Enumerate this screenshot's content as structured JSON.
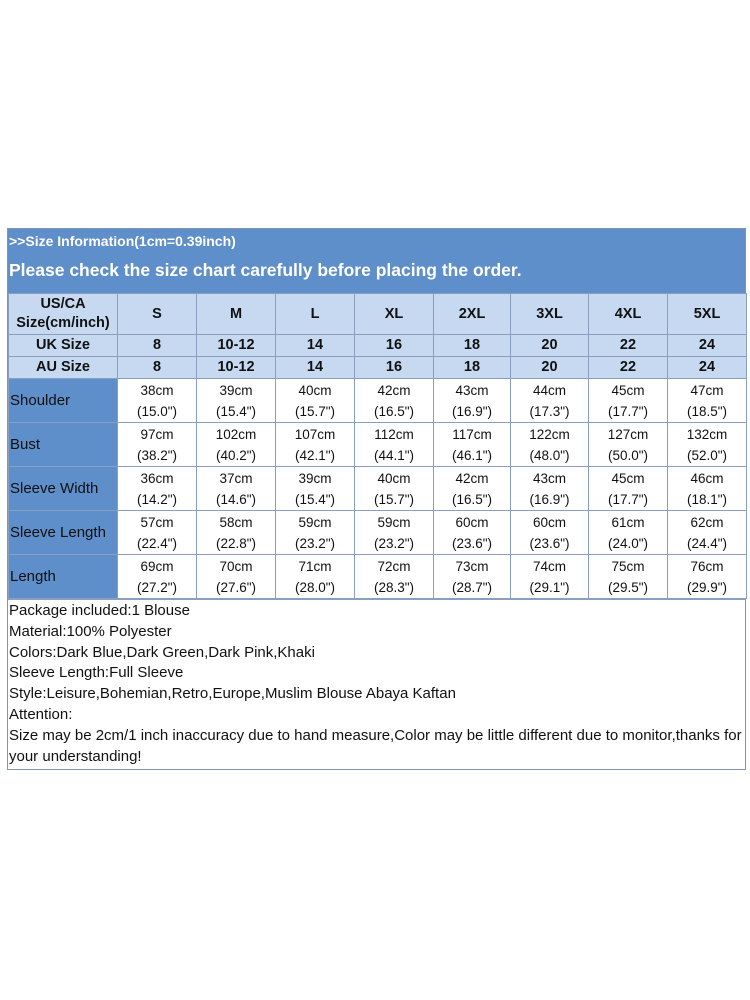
{
  "banner": {
    "info": ">>Size Information(1cm=0.39inch)",
    "note": "Please check the size chart carefully before placing the order."
  },
  "header": {
    "label": [
      "US/CA",
      "Size(cm/inch)"
    ],
    "sizes": [
      "S",
      "M",
      "L",
      "XL",
      "2XL",
      "3XL",
      "4XL",
      "5XL"
    ]
  },
  "uk": {
    "label": "UK Size",
    "values": [
      "8",
      "10-12",
      "14",
      "16",
      "18",
      "20",
      "22",
      "24"
    ]
  },
  "au": {
    "label": "AU Size",
    "values": [
      "8",
      "10-12",
      "14",
      "16",
      "18",
      "20",
      "22",
      "24"
    ]
  },
  "measurements": [
    {
      "label": "Shoulder",
      "cm": [
        "38cm",
        "39cm",
        "40cm",
        "42cm",
        "43cm",
        "44cm",
        "45cm",
        "47cm"
      ],
      "inch": [
        "(15.0\")",
        "(15.4\")",
        "(15.7\")",
        "(16.5\")",
        "(16.9\")",
        "(17.3\")",
        "(17.7\")",
        "(18.5\")"
      ]
    },
    {
      "label": "Bust",
      "cm": [
        "97cm",
        "102cm",
        "107cm",
        "112cm",
        "117cm",
        "122cm",
        "127cm",
        "132cm"
      ],
      "inch": [
        "(38.2\")",
        "(40.2\")",
        "(42.1\")",
        "(44.1\")",
        "(46.1\")",
        "(48.0\")",
        "(50.0\")",
        "(52.0\")"
      ]
    },
    {
      "label": "Sleeve Width",
      "cm": [
        "36cm",
        "37cm",
        "39cm",
        "40cm",
        "42cm",
        "43cm",
        "45cm",
        "46cm"
      ],
      "inch": [
        "(14.2\")",
        "(14.6\")",
        "(15.4\")",
        "(15.7\")",
        "(16.5\")",
        "(16.9\")",
        "(17.7\")",
        "(18.1\")"
      ]
    },
    {
      "label": "Sleeve Length",
      "cm": [
        "57cm",
        "58cm",
        "59cm",
        "59cm",
        "60cm",
        "60cm",
        "61cm",
        "62cm"
      ],
      "inch": [
        "(22.4\")",
        "(22.8\")",
        "(23.2\")",
        "(23.2\")",
        "(23.6\")",
        "(23.6\")",
        "(24.0\")",
        "(24.4\")"
      ]
    },
    {
      "label": "Length",
      "cm": [
        "69cm",
        "70cm",
        "71cm",
        "72cm",
        "73cm",
        "74cm",
        "75cm",
        "76cm"
      ],
      "inch": [
        "(27.2\")",
        "(27.6\")",
        "(28.0\")",
        "(28.3\")",
        "(28.7\")",
        "(29.1\")",
        "(29.5\")",
        "(29.9\")"
      ]
    }
  ],
  "info_lines": [
    "Package included:1 Blouse",
    "Material:100% Polyester",
    "Colors:Dark Blue,Dark Green,Dark Pink,Khaki",
    "Sleeve Length:Full Sleeve",
    "Style:Leisure,Bohemian,Retro,Europe,Muslim Blouse Abaya Kaftan",
    "Attention:",
    "Size may be 2cm/1 inch inaccuracy due to hand measure,Color may be little different due to monitor,thanks for your understanding!"
  ],
  "colors": {
    "banner": "#5e8fcb",
    "header_row": "#c6d9f1",
    "grid": "#8a9fbf"
  }
}
